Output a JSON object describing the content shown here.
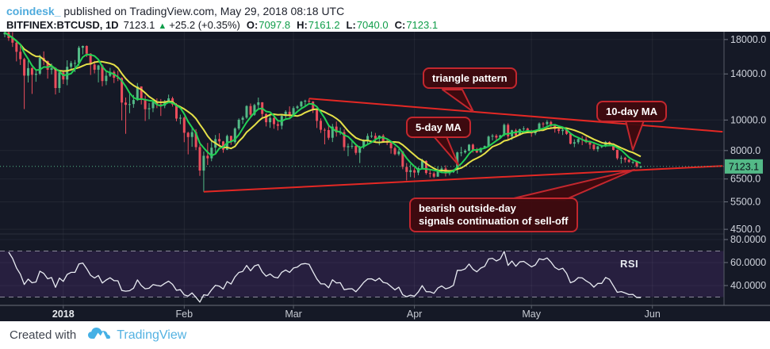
{
  "header": {
    "author": "coindesk_",
    "published": "published on TradingView.com, May 29, 2018 08:18 UTC",
    "symbol": "BITFINEX:BTCUSD, 1D",
    "last_price": "7123.1",
    "change_arrow": "▲",
    "change": "+25.2 (+0.35%)",
    "ohlc": [
      {
        "label": "O:",
        "value": "7097.8"
      },
      {
        "label": "H:",
        "value": "7161.2"
      },
      {
        "label": "L:",
        "value": "7040.0"
      },
      {
        "label": "C:",
        "value": "7123.1"
      }
    ]
  },
  "footer": {
    "created_with": "Created with",
    "brand": "TradingView"
  },
  "chart_data": {
    "type": "candlestick",
    "symbol": "BITFINEX:BTCUSD",
    "interval": "1D",
    "scale": "log",
    "start_date": "2017-12-17",
    "title": "BTCUSD daily with 5/10-day MAs, descending triangle and RSI",
    "price_ticks": [
      {
        "label": "18000.0",
        "value": 18000
      },
      {
        "label": "14000.0",
        "value": 14000
      },
      {
        "label": "10000.0",
        "value": 10000
      },
      {
        "label": "8000.0",
        "value": 8000
      },
      {
        "label": "6500.0",
        "value": 6500
      },
      {
        "label": "5500.0",
        "value": 5500
      },
      {
        "label": "4500.0",
        "value": 4500
      }
    ],
    "rsi_ticks": [
      {
        "label": "80.0000",
        "value": 80
      },
      {
        "label": "60.0000",
        "value": 60
      },
      {
        "label": "40.0000",
        "value": 40
      }
    ],
    "time_labels": [
      {
        "label": "2018",
        "day": 15,
        "bold": true
      },
      {
        "label": "Feb",
        "day": 46
      },
      {
        "label": "Mar",
        "day": 74
      },
      {
        "label": "Apr",
        "day": 105
      },
      {
        "label": "May",
        "day": 135
      },
      {
        "label": "Jun",
        "day": 166
      }
    ],
    "price_line": {
      "value": 7123.1,
      "label": "7123.1"
    },
    "overlays": [
      {
        "name": "5-day MA",
        "type": "sma",
        "length": 5,
        "color": "#22d154"
      },
      {
        "name": "10-day MA",
        "type": "sma",
        "length": 10,
        "color": "#e5e048"
      }
    ],
    "indicator": {
      "name": "RSI",
      "length": 14,
      "overbought": 70,
      "oversold": 30
    },
    "trendlines": [
      {
        "name": "triangle-resistance",
        "points": [
          [
            78,
            11700
          ],
          [
            184,
            9180
          ]
        ]
      },
      {
        "name": "triangle-support",
        "points": [
          [
            51,
            5920
          ],
          [
            184,
            7150
          ]
        ]
      }
    ],
    "annotations": {
      "triangle": {
        "text": "triangle pattern"
      },
      "ma10": {
        "text": "10-day MA"
      },
      "ma5": {
        "text": "5-day MA"
      },
      "bearish": {
        "line1": "bearish outside-day",
        "line2": "signals continuation of sell-off"
      },
      "rsi_label": {
        "text": "RSI"
      }
    },
    "colors": {
      "background": "#151926",
      "up": "#53b987",
      "down": "#eb4d5c",
      "trendline": "#e42824",
      "ma5": "#22d154",
      "ma10": "#e5e048",
      "price_line": "#53b987",
      "rsi_line": "#e8ebf2",
      "rsi_band": "rgba(136,66,200,0.16)",
      "grid": "rgba(255,255,255,0.06)",
      "axis_text": "#cfd3dc",
      "tag_text": "#0b0f1a"
    },
    "candles_ohlc": [
      [
        18700,
        19080,
        18300,
        18960
      ],
      [
        18960,
        19100,
        17830,
        18200
      ],
      [
        18200,
        19000,
        17050,
        17590
      ],
      [
        17590,
        17930,
        15340,
        16460
      ],
      [
        16460,
        17280,
        14950,
        15600
      ],
      [
        15600,
        15750,
        10830,
        13830
      ],
      [
        13830,
        15440,
        13150,
        14610
      ],
      [
        14610,
        14700,
        12100,
        13920
      ],
      [
        13920,
        14420,
        13220,
        14030
      ],
      [
        14030,
        16120,
        13890,
        15750
      ],
      [
        15750,
        16510,
        14930,
        15380
      ],
      [
        15380,
        15450,
        13530,
        14430
      ],
      [
        14430,
        15120,
        13950,
        14620
      ],
      [
        14620,
        14700,
        12050,
        12630
      ],
      [
        12630,
        14380,
        12200,
        14160
      ],
      [
        14160,
        14230,
        13000,
        13440
      ],
      [
        13440,
        15470,
        12890,
        14750
      ],
      [
        14750,
        15400,
        14300,
        15160
      ],
      [
        15160,
        15500,
        14200,
        15180
      ],
      [
        15180,
        17180,
        14830,
        16950
      ],
      [
        16950,
        17230,
        16150,
        17170
      ],
      [
        17170,
        17250,
        15850,
        16230
      ],
      [
        16230,
        16300,
        13900,
        15000
      ],
      [
        15000,
        15400,
        14060,
        14440
      ],
      [
        14440,
        14970,
        13160,
        14900
      ],
      [
        14900,
        15000,
        12800,
        13290
      ],
      [
        13290,
        14230,
        12900,
        13820
      ],
      [
        13820,
        14640,
        13700,
        14210
      ],
      [
        14210,
        14370,
        13100,
        13620
      ],
      [
        13620,
        14330,
        13280,
        13590
      ],
      [
        13590,
        13660,
        9970,
        11360
      ],
      [
        11360,
        11790,
        9040,
        11170
      ],
      [
        11170,
        12110,
        10510,
        11230
      ],
      [
        11230,
        12010,
        10930,
        11570
      ],
      [
        11570,
        13100,
        11500,
        12780
      ],
      [
        12780,
        12790,
        11200,
        11580
      ],
      [
        11580,
        11950,
        9930,
        10820
      ],
      [
        10820,
        11320,
        10060,
        10900
      ],
      [
        10900,
        11500,
        10590,
        11410
      ],
      [
        11410,
        11710,
        10900,
        11230
      ],
      [
        11230,
        11650,
        10300,
        11100
      ],
      [
        11100,
        11580,
        10900,
        11440
      ],
      [
        11440,
        12040,
        11370,
        11710
      ],
      [
        11710,
        11860,
        11030,
        11200
      ],
      [
        11200,
        11300,
        9910,
        10100
      ],
      [
        10100,
        10400,
        9700,
        10170
      ],
      [
        10170,
        10250,
        8500,
        9110
      ],
      [
        9110,
        9180,
        7780,
        8830
      ],
      [
        8830,
        9450,
        8220,
        9150
      ],
      [
        9150,
        9350,
        8030,
        8200
      ],
      [
        8200,
        8340,
        6650,
        6910
      ],
      [
        6910,
        7950,
        5920,
        7700
      ],
      [
        7700,
        8460,
        7200,
        7560
      ],
      [
        7560,
        8640,
        7400,
        8170
      ],
      [
        8170,
        8960,
        7800,
        8700
      ],
      [
        8700,
        9080,
        8210,
        8550
      ],
      [
        8550,
        8580,
        7870,
        8050
      ],
      [
        8050,
        8990,
        8030,
        8900
      ],
      [
        8900,
        8920,
        8340,
        8510
      ],
      [
        8510,
        9480,
        8400,
        9400
      ],
      [
        9400,
        10120,
        9280,
        10020
      ],
      [
        10020,
        10300,
        9720,
        10170
      ],
      [
        10170,
        11140,
        10080,
        11070
      ],
      [
        11070,
        11280,
        10150,
        10390
      ],
      [
        10390,
        11260,
        10310,
        11160
      ],
      [
        11160,
        11780,
        10850,
        11380
      ],
      [
        11380,
        11400,
        10170,
        10450
      ],
      [
        10450,
        10500,
        9540,
        9840
      ],
      [
        9840,
        10350,
        9440,
        10150
      ],
      [
        10150,
        10500,
        9380,
        9700
      ],
      [
        9700,
        9880,
        9270,
        9590
      ],
      [
        9590,
        10360,
        9340,
        10300
      ],
      [
        10300,
        10740,
        10130,
        10620
      ],
      [
        10620,
        11050,
        10100,
        10330
      ],
      [
        10330,
        11060,
        10260,
        10910
      ],
      [
        10910,
        11150,
        10810,
        11040
      ],
      [
        11040,
        11490,
        10960,
        11440
      ],
      [
        11440,
        11600,
        11030,
        11510
      ],
      [
        11510,
        11700,
        11310,
        11440
      ],
      [
        11440,
        11480,
        10530,
        10740
      ],
      [
        10740,
        10820,
        9430,
        9940
      ],
      [
        9940,
        10120,
        9100,
        9310
      ],
      [
        9310,
        9430,
        8370,
        9290
      ],
      [
        9290,
        9700,
        8650,
        8780
      ],
      [
        8780,
        9720,
        8510,
        9530
      ],
      [
        9530,
        9890,
        8860,
        9130
      ],
      [
        9130,
        9470,
        8960,
        9150
      ],
      [
        9150,
        9340,
        7980,
        8200
      ],
      [
        8200,
        8430,
        7680,
        8260
      ],
      [
        8260,
        8580,
        8110,
        8280
      ],
      [
        8280,
        8330,
        7750,
        7870
      ],
      [
        7870,
        8280,
        7300,
        8200
      ],
      [
        8200,
        8680,
        8100,
        8600
      ],
      [
        8600,
        9060,
        8330,
        8900
      ],
      [
        8900,
        9190,
        8770,
        8910
      ],
      [
        8910,
        9100,
        8480,
        8720
      ],
      [
        8720,
        8940,
        8310,
        8920
      ],
      [
        8920,
        9020,
        8500,
        8530
      ],
      [
        8530,
        8680,
        8320,
        8450
      ],
      [
        8450,
        8510,
        7820,
        8140
      ],
      [
        8140,
        8240,
        7730,
        7790
      ],
      [
        7790,
        8090,
        7700,
        7950
      ],
      [
        7950,
        7960,
        6980,
        7100
      ],
      [
        7100,
        7300,
        6430,
        6840
      ],
      [
        6840,
        7250,
        6590,
        6930
      ],
      [
        6930,
        7050,
        6560,
        6810
      ],
      [
        6810,
        7100,
        6680,
        7040
      ],
      [
        7040,
        7530,
        7020,
        7410
      ],
      [
        7410,
        7450,
        6710,
        6790
      ],
      [
        6790,
        6930,
        6570,
        6770
      ],
      [
        6770,
        6840,
        6550,
        6610
      ],
      [
        6610,
        7120,
        6600,
        6900
      ],
      [
        6900,
        7110,
        6810,
        7020
      ],
      [
        7020,
        7180,
        6620,
        6770
      ],
      [
        6770,
        6890,
        6670,
        6830
      ],
      [
        6830,
        6980,
        6790,
        6950
      ],
      [
        6950,
        7940,
        6760,
        7890
      ],
      [
        7890,
        8220,
        7670,
        7890
      ],
      [
        7890,
        8080,
        7820,
        7990
      ],
      [
        7990,
        8390,
        7940,
        8350
      ],
      [
        8350,
        8420,
        7880,
        8050
      ],
      [
        8050,
        8160,
        7850,
        7890
      ],
      [
        7890,
        8190,
        7880,
        8150
      ],
      [
        8150,
        8300,
        8100,
        8270
      ],
      [
        8270,
        8930,
        8230,
        8860
      ],
      [
        8860,
        9030,
        8610,
        8920
      ],
      [
        8920,
        9020,
        8650,
        8790
      ],
      [
        8790,
        8980,
        8770,
        8940
      ],
      [
        8940,
        9750,
        8870,
        9650
      ],
      [
        9650,
        9760,
        8650,
        8870
      ],
      [
        8870,
        9310,
        8640,
        9280
      ],
      [
        9280,
        9380,
        8890,
        8940
      ],
      [
        8940,
        9390,
        8930,
        9350
      ],
      [
        9350,
        9550,
        9220,
        9400
      ],
      [
        9400,
        9460,
        9130,
        9240
      ],
      [
        9240,
        9310,
        8850,
        9070
      ],
      [
        9070,
        9270,
        8950,
        9220
      ],
      [
        9220,
        9830,
        9180,
        9750
      ],
      [
        9750,
        9850,
        9480,
        9700
      ],
      [
        9700,
        9990,
        9590,
        9860
      ],
      [
        9860,
        9940,
        9420,
        9650
      ],
      [
        9650,
        9700,
        9120,
        9360
      ],
      [
        9360,
        9460,
        9050,
        9230
      ],
      [
        9230,
        9400,
        8960,
        9320
      ],
      [
        9320,
        9390,
        8970,
        9040
      ],
      [
        9040,
        9050,
        8370,
        8410
      ],
      [
        8410,
        8680,
        8200,
        8500
      ],
      [
        8500,
        8790,
        8390,
        8700
      ],
      [
        8700,
        8890,
        8320,
        8680
      ],
      [
        8680,
        8850,
        8440,
        8500
      ],
      [
        8500,
        8560,
        8100,
        8350
      ],
      [
        8350,
        8410,
        8000,
        8080
      ],
      [
        8080,
        8270,
        7930,
        8250
      ],
      [
        8250,
        8350,
        8150,
        8250
      ],
      [
        8250,
        8580,
        8200,
        8520
      ],
      [
        8520,
        8560,
        8290,
        8420
      ],
      [
        8420,
        8440,
        8000,
        8040
      ],
      [
        8040,
        8050,
        7480,
        7560
      ],
      [
        7560,
        7710,
        7270,
        7590
      ],
      [
        7590,
        7640,
        7330,
        7480
      ],
      [
        7480,
        7520,
        7310,
        7360
      ],
      [
        7360,
        7400,
        7250,
        7370
      ],
      [
        7370,
        7400,
        7060,
        7130
      ],
      [
        7097.8,
        7161.2,
        7040,
        7123.1
      ]
    ]
  }
}
